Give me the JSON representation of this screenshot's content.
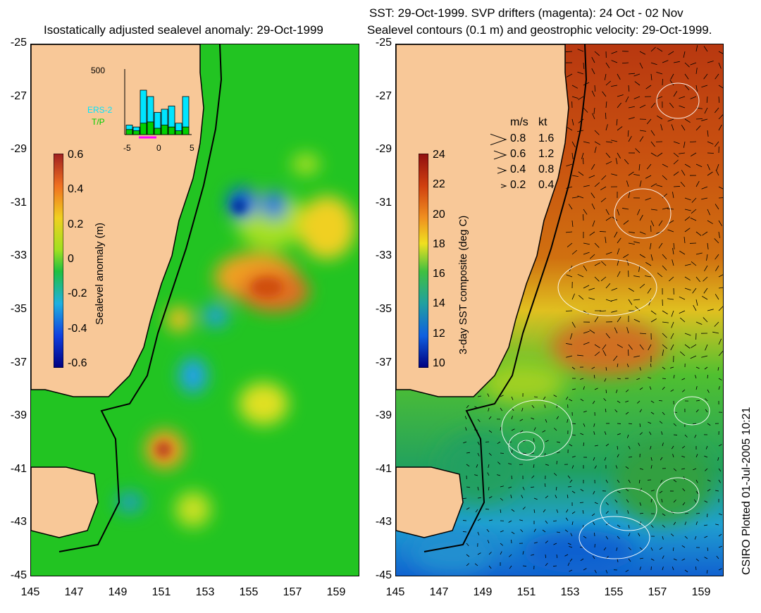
{
  "left_panel": {
    "title": "Isostatically adjusted sealevel anomaly: 29-Oct-1999",
    "y_ticks": [
      "-25",
      "-27",
      "-29",
      "-31",
      "-33",
      "-35",
      "-37",
      "-39",
      "-41",
      "-43",
      "-45"
    ],
    "x_ticks": [
      "145",
      "147",
      "149",
      "151",
      "153",
      "155",
      "157",
      "159"
    ],
    "colorbar": {
      "label": "Sealevel anomaly (m)",
      "ticks": [
        "0.6",
        "0.4",
        "0.2",
        "0",
        "-0.2",
        "-0.4",
        "-0.6"
      ],
      "range": [
        -0.6,
        0.6
      ]
    },
    "inset": {
      "y_max_label": "500",
      "x_ticks": [
        "-5",
        "0",
        "5"
      ],
      "legend": [
        {
          "name": "ERS-2",
          "color": "#00e5ff"
        },
        {
          "name": "T/P",
          "color": "#00d000"
        }
      ]
    }
  },
  "right_panel": {
    "title_line1": "SST: 29-Oct-1999. SVP drifters (magenta): 24 Oct - 02 Nov",
    "title_line2": "Sealevel contours (0.1 m) and geostrophic velocity: 29-Oct-1999.",
    "y_ticks": [
      "-25",
      "-27",
      "-29",
      "-31",
      "-33",
      "-35",
      "-37",
      "-39",
      "-41",
      "-43",
      "-45"
    ],
    "x_ticks": [
      "145",
      "147",
      "149",
      "151",
      "153",
      "155",
      "157",
      "159"
    ],
    "colorbar": {
      "label": "3-day SST composite (deg C)",
      "ticks": [
        "24",
        "22",
        "20",
        "18",
        "16",
        "14",
        "12",
        "10"
      ],
      "range": [
        9,
        24
      ]
    },
    "velocity_key": {
      "header_ms": "m/s",
      "header_kt": "kt",
      "rows": [
        {
          "ms": "0.8",
          "kt": "1.6"
        },
        {
          "ms": "0.6",
          "kt": "1.2"
        },
        {
          "ms": "0.4",
          "kt": "0.8"
        },
        {
          "ms": "0.2",
          "kt": "0.4"
        }
      ]
    }
  },
  "stamp": "CSIRO Plotted 01-Jul-2005 10:21",
  "colors": {
    "land": "#f8c898",
    "ocean_mid": "#20c020",
    "coast": "#000000"
  }
}
